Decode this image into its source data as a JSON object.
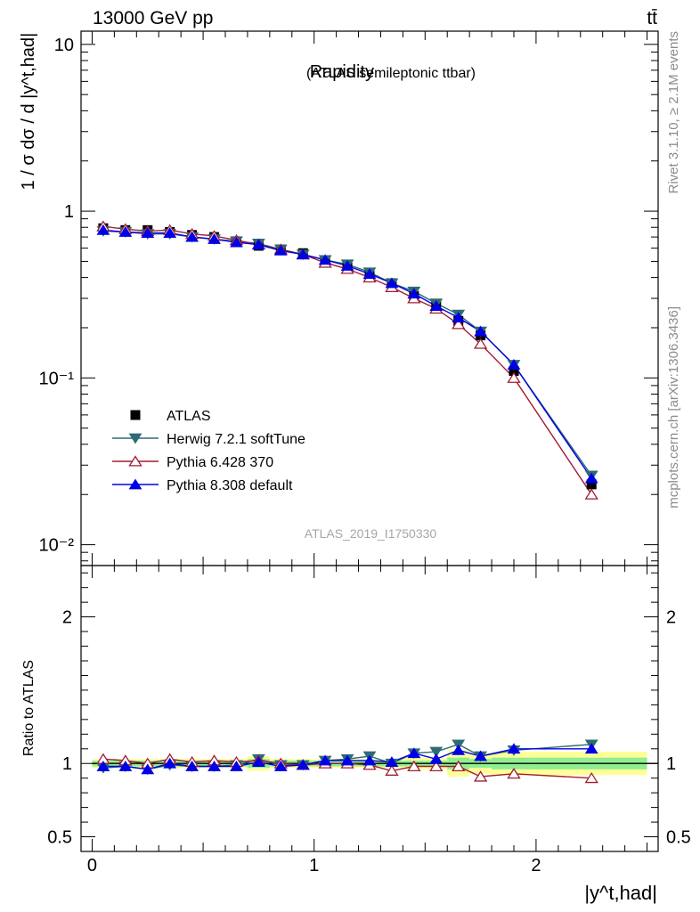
{
  "header": {
    "energy": "13000 GeV pp",
    "process": "tt̄"
  },
  "side_text": {
    "rivet": "Rivet 3.1.10, ≥ 2.1M events",
    "mcplots": "mcplots.cern.ch [arXiv:1306.3436]"
  },
  "watermark": "ATLAS_2019_I1750330",
  "colors": {
    "atlas": "#000000",
    "herwig": "#2e6b74",
    "pythia6": "#a01e32",
    "pythia8": "#0000e6",
    "band_inner": "#90ee90",
    "band_outer": "#ffff99"
  },
  "chart_data": [
    {
      "type": "line",
      "title": "Rapidity",
      "subtitle": "(ATLAS semileptonic ttbar)",
      "ylabel": "1 / σ dσ / d |y^t,had|",
      "yscale": "log",
      "ylim": [
        0.0075,
        12
      ],
      "xlim": [
        -0.05,
        2.55
      ],
      "y_ticks": [
        {
          "v": 10,
          "label": "10"
        },
        {
          "v": 1,
          "label": "1"
        },
        {
          "v": 0.1,
          "label": "10⁻¹"
        },
        {
          "v": 0.01,
          "label": "10⁻²"
        }
      ],
      "legend_position": "bottom-left",
      "bin_edges": [
        0,
        0.1,
        0.2,
        0.3,
        0.4,
        0.5,
        0.6,
        0.7,
        0.8,
        0.9,
        1.0,
        1.1,
        1.2,
        1.3,
        1.4,
        1.5,
        1.6,
        1.7,
        1.8,
        2.0,
        2.5
      ],
      "x": [
        0.05,
        0.15,
        0.25,
        0.35,
        0.45,
        0.55,
        0.65,
        0.75,
        0.85,
        0.95,
        1.05,
        1.15,
        1.25,
        1.35,
        1.45,
        1.55,
        1.65,
        1.75,
        1.9,
        2.25
      ],
      "series": [
        {
          "name": "ATLAS",
          "marker": "square",
          "values": [
            0.79,
            0.77,
            0.77,
            0.75,
            0.72,
            0.7,
            0.66,
            0.62,
            0.59,
            0.56,
            0.5,
            0.46,
            0.41,
            0.37,
            0.31,
            0.27,
            0.22,
            0.18,
            0.11,
            0.023
          ]
        },
        {
          "name": "Herwig 7.2.1 softTune",
          "marker": "triangle-down",
          "values": [
            0.76,
            0.75,
            0.73,
            0.73,
            0.7,
            0.68,
            0.66,
            0.64,
            0.59,
            0.55,
            0.51,
            0.48,
            0.43,
            0.37,
            0.33,
            0.28,
            0.24,
            0.19,
            0.12,
            0.026
          ]
        },
        {
          "name": "Pythia 6.428 370",
          "marker": "triangle-up-open",
          "values": [
            0.81,
            0.78,
            0.76,
            0.77,
            0.73,
            0.71,
            0.67,
            0.63,
            0.59,
            0.55,
            0.49,
            0.45,
            0.4,
            0.35,
            0.3,
            0.26,
            0.21,
            0.16,
            0.1,
            0.02
          ]
        },
        {
          "name": "Pythia 8.308 default",
          "marker": "triangle-up",
          "values": [
            0.77,
            0.75,
            0.74,
            0.74,
            0.7,
            0.68,
            0.65,
            0.63,
            0.58,
            0.55,
            0.51,
            0.47,
            0.42,
            0.37,
            0.32,
            0.27,
            0.23,
            0.19,
            0.12,
            0.025
          ]
        }
      ]
    },
    {
      "type": "line",
      "ylabel": "Ratio to ATLAS",
      "xlabel": "|y^t,had|",
      "ylim": [
        0.4,
        2.35
      ],
      "xlim": [
        -0.05,
        2.55
      ],
      "y_ticks": [
        {
          "v": 2,
          "label": "2"
        },
        {
          "v": 1,
          "label": "1"
        },
        {
          "v": 0.5,
          "label": "0.5"
        }
      ],
      "x_ticks": [
        {
          "v": 0,
          "label": "0"
        },
        {
          "v": 1,
          "label": "1"
        },
        {
          "v": 2,
          "label": "2"
        }
      ],
      "band_inner": [
        0.02,
        0.02,
        0.02,
        0.02,
        0.02,
        0.02,
        0.02,
        0.03,
        0.02,
        0.02,
        0.02,
        0.02,
        0.02,
        0.02,
        0.02,
        0.02,
        0.04,
        0.03,
        0.04,
        0.04
      ],
      "band_outer": [
        0.03,
        0.03,
        0.03,
        0.03,
        0.03,
        0.03,
        0.03,
        0.05,
        0.03,
        0.03,
        0.03,
        0.03,
        0.03,
        0.03,
        0.04,
        0.04,
        0.09,
        0.07,
        0.08,
        0.08
      ],
      "x": [
        0.05,
        0.15,
        0.25,
        0.35,
        0.45,
        0.55,
        0.65,
        0.75,
        0.85,
        0.95,
        1.05,
        1.15,
        1.25,
        1.35,
        1.45,
        1.55,
        1.65,
        1.75,
        1.9,
        2.25
      ],
      "series": [
        {
          "name": "Herwig 7.2.1 softTune",
          "values": [
            0.97,
            0.98,
            0.96,
            0.99,
            0.98,
            0.98,
            0.99,
            1.03,
            0.99,
            0.99,
            1.02,
            1.03,
            1.05,
            1.0,
            1.07,
            1.08,
            1.13,
            1.05,
            1.09,
            1.13
          ]
        },
        {
          "name": "Pythia 6.428 370",
          "values": [
            1.03,
            1.02,
            1.0,
            1.03,
            1.01,
            1.02,
            1.01,
            1.02,
            1.0,
            0.99,
            1.0,
            1.0,
            0.99,
            0.95,
            0.98,
            0.98,
            0.98,
            0.91,
            0.93,
            0.9
          ]
        },
        {
          "name": "Pythia 8.308 default",
          "values": [
            0.98,
            0.98,
            0.96,
            1.0,
            0.98,
            0.98,
            0.98,
            1.01,
            0.98,
            0.99,
            1.02,
            1.02,
            1.02,
            1.01,
            1.07,
            1.03,
            1.09,
            1.05,
            1.1,
            1.1
          ]
        }
      ]
    }
  ]
}
